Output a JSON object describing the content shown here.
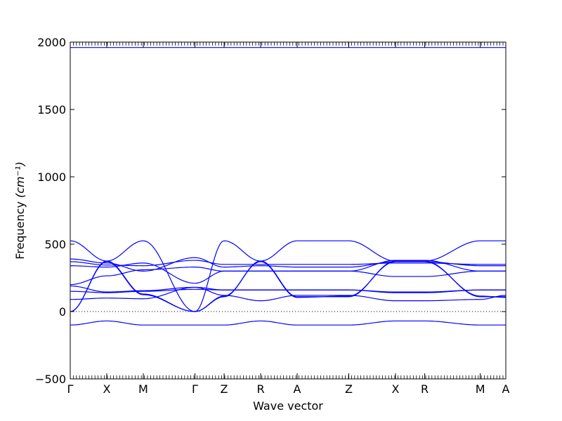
{
  "chart_data": {
    "type": "line",
    "xlabel": "Wave vector",
    "ylabel": "Frequency",
    "ylabel_unit": "(cm⁻¹)",
    "ylim": [
      -500,
      2000
    ],
    "yticks": [
      -500,
      0,
      500,
      1000,
      1500,
      2000
    ],
    "ytick_labels": [
      "−500",
      "0",
      "500",
      "1000",
      "1500",
      "2000"
    ],
    "xtick_labels": [
      "Γ",
      "X",
      "M",
      "Γ",
      "Z",
      "R",
      "A",
      "Z",
      "X",
      "R",
      "M",
      "A"
    ],
    "xtick_positions": [
      0,
      1,
      2,
      3.414,
      4.214,
      5.214,
      6.214,
      7.628,
      8.908,
      9.708,
      11.228,
      11.928
    ],
    "xlim": [
      0,
      11.928
    ],
    "zero_line": true,
    "grid": false,
    "line_color": "#0000ff",
    "series": [
      {
        "x": [
          0,
          11.928
        ],
        "values": [
          1960,
          1960
        ]
      },
      {
        "x": [
          0,
          1,
          2,
          3.414,
          4.214,
          5.214,
          6.214,
          7.628,
          8.908,
          9.708,
          11.228,
          11.928
        ],
        "values": [
          0,
          375,
          130,
          0,
          110,
          375,
          110,
          110,
          375,
          375,
          110,
          110
        ]
      },
      {
        "x": [
          0,
          1,
          2,
          3.414,
          4.214,
          5.214,
          6.214,
          7.628,
          8.908,
          9.708,
          11.228,
          11.928
        ],
        "values": [
          0,
          370,
          125,
          0,
          115,
          370,
          105,
          115,
          370,
          370,
          115,
          105
        ]
      },
      {
        "x": [
          0,
          1,
          2,
          3.414,
          4.214,
          5.214,
          6.214,
          7.628,
          8.908,
          9.708,
          11.228,
          11.928
        ],
        "values": [
          525,
          375,
          525,
          0,
          525,
          375,
          525,
          525,
          375,
          375,
          525,
          525
        ]
      },
      {
        "x": [
          0,
          1,
          2,
          3.414,
          4.214,
          5.214,
          6.214,
          7.628,
          8.908,
          9.708,
          11.228,
          11.928
        ],
        "values": [
          390,
          360,
          300,
          400,
          330,
          340,
          330,
          330,
          370,
          370,
          340,
          340
        ]
      },
      {
        "x": [
          0,
          1,
          2,
          3.414,
          4.214,
          5.214,
          6.214,
          7.628,
          8.908,
          9.708,
          11.228,
          11.928
        ],
        "values": [
          370,
          345,
          340,
          380,
          350,
          350,
          350,
          350,
          360,
          360,
          350,
          350
        ]
      },
      {
        "x": [
          0,
          1,
          2,
          3.414,
          4.214,
          5.214,
          6.214,
          7.628,
          8.908,
          9.708,
          11.228,
          11.928
        ],
        "values": [
          340,
          330,
          360,
          210,
          300,
          300,
          300,
          300,
          380,
          380,
          300,
          300
        ]
      },
      {
        "x": [
          0,
          1,
          2,
          3.414,
          4.214,
          5.214,
          6.214,
          7.628,
          8.908,
          9.708,
          11.228,
          11.928
        ],
        "values": [
          200,
          265,
          310,
          330,
          300,
          300,
          300,
          300,
          260,
          260,
          300,
          300
        ]
      },
      {
        "x": [
          0,
          1,
          2,
          3.414,
          4.214,
          5.214,
          6.214,
          7.628,
          8.908,
          9.708,
          11.228,
          11.928
        ],
        "values": [
          190,
          145,
          155,
          180,
          160,
          160,
          160,
          160,
          145,
          145,
          160,
          160
        ]
      },
      {
        "x": [
          0,
          1,
          2,
          3.414,
          4.214,
          5.214,
          6.214,
          7.628,
          8.908,
          9.708,
          11.228,
          11.928
        ],
        "values": [
          150,
          140,
          150,
          165,
          160,
          160,
          160,
          160,
          140,
          140,
          160,
          160
        ]
      },
      {
        "x": [
          0,
          1,
          2,
          3.414,
          4.214,
          5.214,
          6.214,
          7.628,
          8.908,
          9.708,
          11.228,
          11.928
        ],
        "values": [
          90,
          100,
          95,
          180,
          120,
          80,
          120,
          120,
          80,
          80,
          90,
          120
        ]
      },
      {
        "x": [
          0,
          1,
          2,
          3.414,
          4.214,
          5.214,
          6.214,
          7.628,
          8.908,
          9.708,
          11.228,
          11.928
        ],
        "values": [
          -100,
          -70,
          -100,
          -100,
          -100,
          -70,
          -100,
          -100,
          -70,
          -70,
          -100,
          -100
        ]
      }
    ]
  }
}
